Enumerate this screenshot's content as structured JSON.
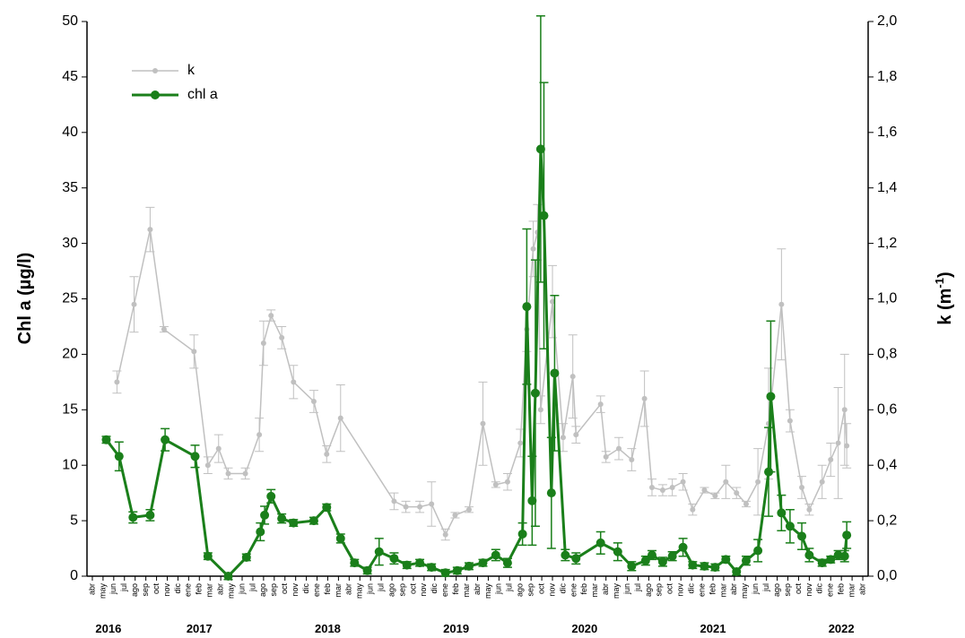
{
  "chart_data": {
    "type": "line",
    "categories": [
      "abr",
      "may",
      "jun",
      "jul",
      "ago",
      "sep",
      "oct",
      "nov",
      "dic",
      "ene",
      "feb",
      "mar",
      "abr",
      "may",
      "jun",
      "jul",
      "ago",
      "sep",
      "oct",
      "nov",
      "dic",
      "ene",
      "feb",
      "mar",
      "abr",
      "may",
      "jun",
      "jul",
      "ago",
      "sep",
      "oct",
      "nov",
      "dic",
      "ene",
      "feb",
      "mar",
      "abr",
      "may",
      "jun",
      "jul",
      "ago",
      "sep",
      "oct",
      "nov",
      "dic",
      "ene",
      "feb",
      "mar",
      "abr",
      "may",
      "jun",
      "jul",
      "ago",
      "sep",
      "oct",
      "nov",
      "dic",
      "ene",
      "feb",
      "mar",
      "abr",
      "may",
      "jun",
      "jul",
      "ago",
      "sep",
      "oct",
      "nov",
      "dic",
      "ene",
      "feb",
      "mar",
      "abr"
    ],
    "year_labels": [
      "2016",
      "2017",
      "2018",
      "2019",
      "2020",
      "2021",
      "2022"
    ],
    "y_label": "Chl a (µg/l)",
    "y2_label": {
      "base": "k (m",
      "sup": "-1",
      "end": ")"
    },
    "xlim": [
      -0.5,
      72.5
    ],
    "ylim": [
      0,
      50
    ],
    "yticks": [
      0,
      5,
      10,
      15,
      20,
      25,
      30,
      35,
      40,
      45,
      50
    ],
    "y2lim": [
      0,
      2
    ],
    "y2ticks": [
      {
        "value": 0,
        "label": "0,0"
      },
      {
        "value": 0.2,
        "label": "0,2"
      },
      {
        "value": 0.4,
        "label": "0,4"
      },
      {
        "value": 0.6,
        "label": "0,6"
      },
      {
        "value": 0.8,
        "label": "0,8"
      },
      {
        "value": 1,
        "label": "1,0"
      },
      {
        "value": 1.2,
        "label": "1,2"
      },
      {
        "value": 1.4,
        "label": "1,4"
      },
      {
        "value": 1.6,
        "label": "1,6"
      },
      {
        "value": 1.8,
        "label": "1,8"
      },
      {
        "value": 2,
        "label": "2,0"
      }
    ],
    "legend": "top-left",
    "series": [
      {
        "name": "k",
        "color": "#c0c0c0",
        "axis": "y2",
        "x": [
          2.3,
          3.9,
          5.4,
          6.7,
          9.5,
          10.8,
          11.8,
          12.7,
          14.3,
          15.6,
          16,
          16.7,
          17.7,
          18.8,
          20.7,
          21.9,
          23.2,
          28.2,
          29.3,
          30.6,
          31.7,
          33,
          33.9,
          35.2,
          36.5,
          37.7,
          38.8,
          40,
          40.6,
          41.2,
          41.6,
          41.9,
          43,
          44,
          44.9,
          45.2,
          47.5,
          48,
          49.2,
          50.4,
          51.6,
          52.3,
          53.3,
          54.2,
          55.2,
          56.1,
          57.2,
          58.2,
          59.2,
          60.2,
          61.1,
          62.2,
          63.2,
          64.4,
          65.2,
          66.3,
          67,
          68.2,
          69,
          69.7,
          70.3,
          70.5
        ],
        "values": [
          0.7,
          0.98,
          1.25,
          0.89,
          0.81,
          0.4,
          0.46,
          0.37,
          0.37,
          0.51,
          0.84,
          0.94,
          0.86,
          0.7,
          0.63,
          0.44,
          0.57,
          0.27,
          0.25,
          0.25,
          0.26,
          0.15,
          0.22,
          0.24,
          0.55,
          0.33,
          0.34,
          0.48,
          0.89,
          1.18,
          1.24,
          0.6,
          0.99,
          0.5,
          0.72,
          0.51,
          0.62,
          0.43,
          0.46,
          0.42,
          0.64,
          0.32,
          0.31,
          0.32,
          0.34,
          0.24,
          0.31,
          0.29,
          0.34,
          0.3,
          0.26,
          0.34,
          0.55,
          0.98,
          0.56,
          0.32,
          0.24,
          0.34,
          0.42,
          0.48,
          0.6,
          0.47
        ],
        "errors": [
          0.04,
          0.1,
          0.08,
          0.01,
          0.06,
          0.03,
          0.05,
          0.02,
          0.02,
          0.06,
          0.08,
          0.02,
          0.04,
          0.06,
          0.04,
          0.03,
          0.12,
          0.03,
          0.02,
          0.02,
          0.08,
          0.02,
          0.01,
          0.01,
          0.15,
          0.01,
          0.03,
          0.05,
          0.08,
          0.1,
          0.1,
          0.05,
          0.13,
          0.05,
          0.15,
          0.03,
          0.03,
          0.02,
          0.04,
          0.04,
          0.1,
          0.03,
          0.02,
          0.03,
          0.03,
          0.02,
          0.01,
          0.01,
          0.06,
          0.02,
          0.01,
          0.12,
          0.2,
          0.2,
          0.04,
          0.04,
          0.02,
          0.06,
          0.06,
          0.2,
          0.2,
          0.08
        ]
      },
      {
        "name": "chl a",
        "color": "#1a7f1a",
        "axis": "y",
        "x": [
          1.3,
          2.5,
          3.8,
          5.4,
          6.8,
          9.6,
          10.8,
          12.7,
          14.4,
          15.7,
          16.1,
          16.7,
          17.7,
          18.8,
          20.7,
          21.9,
          23.2,
          24.5,
          25.7,
          26.8,
          28.2,
          29.4,
          30.6,
          31.7,
          33,
          34.1,
          35.2,
          36.5,
          37.7,
          38.8,
          40.2,
          40.6,
          41.1,
          41.4,
          41.9,
          42.2,
          42.9,
          43.2,
          44.2,
          45.2,
          47.5,
          49.1,
          50.4,
          51.7,
          52.3,
          53.3,
          54.2,
          55.2,
          56.1,
          57.2,
          58.2,
          59.2,
          60.2,
          61.1,
          62.2,
          63.2,
          63.4,
          64.4,
          65.2,
          66.3,
          67,
          68.2,
          69,
          69.7,
          70.3,
          70.5
        ],
        "values": [
          12.3,
          10.8,
          5.3,
          5.5,
          12.3,
          10.8,
          1.8,
          0,
          1.7,
          4,
          5.5,
          7.2,
          5.2,
          4.8,
          5,
          6.2,
          3.4,
          1.2,
          0.5,
          2.2,
          1.6,
          1,
          1.2,
          0.8,
          0.3,
          0.5,
          0.9,
          1.2,
          1.9,
          1.2,
          3.8,
          24.3,
          6.8,
          16.5,
          38.5,
          32.5,
          7.5,
          18.3,
          1.9,
          1.6,
          3,
          2.2,
          0.9,
          1.4,
          1.9,
          1.3,
          1.8,
          2.6,
          1,
          0.9,
          0.8,
          1.5,
          0.4,
          1.4,
          2.3,
          9.4,
          16.2,
          5.7,
          4.5,
          3.6,
          1.9,
          1.2,
          1.5,
          1.9,
          1.8,
          3.7
        ],
        "errors": [
          0.3,
          1.3,
          0.5,
          0.5,
          1,
          1,
          0.3,
          0.3,
          0.3,
          0.8,
          0.8,
          0.6,
          0.4,
          0.3,
          0.3,
          0.3,
          0.4,
          0.3,
          0.3,
          1.2,
          0.5,
          0.3,
          0.3,
          0.3,
          0.3,
          0.3,
          0.3,
          0.3,
          0.5,
          0.4,
          1,
          7,
          4,
          12,
          12,
          12,
          5,
          7,
          0.5,
          0.5,
          1,
          0.8,
          0.4,
          0.4,
          0.4,
          0.4,
          0.4,
          0.8,
          0.3,
          0.3,
          0.3,
          0.3,
          0.3,
          0.4,
          1,
          4,
          6.8,
          1.6,
          1.5,
          1.2,
          0.6,
          0.3,
          0.3,
          0.4,
          0.5,
          1.2
        ]
      }
    ]
  }
}
